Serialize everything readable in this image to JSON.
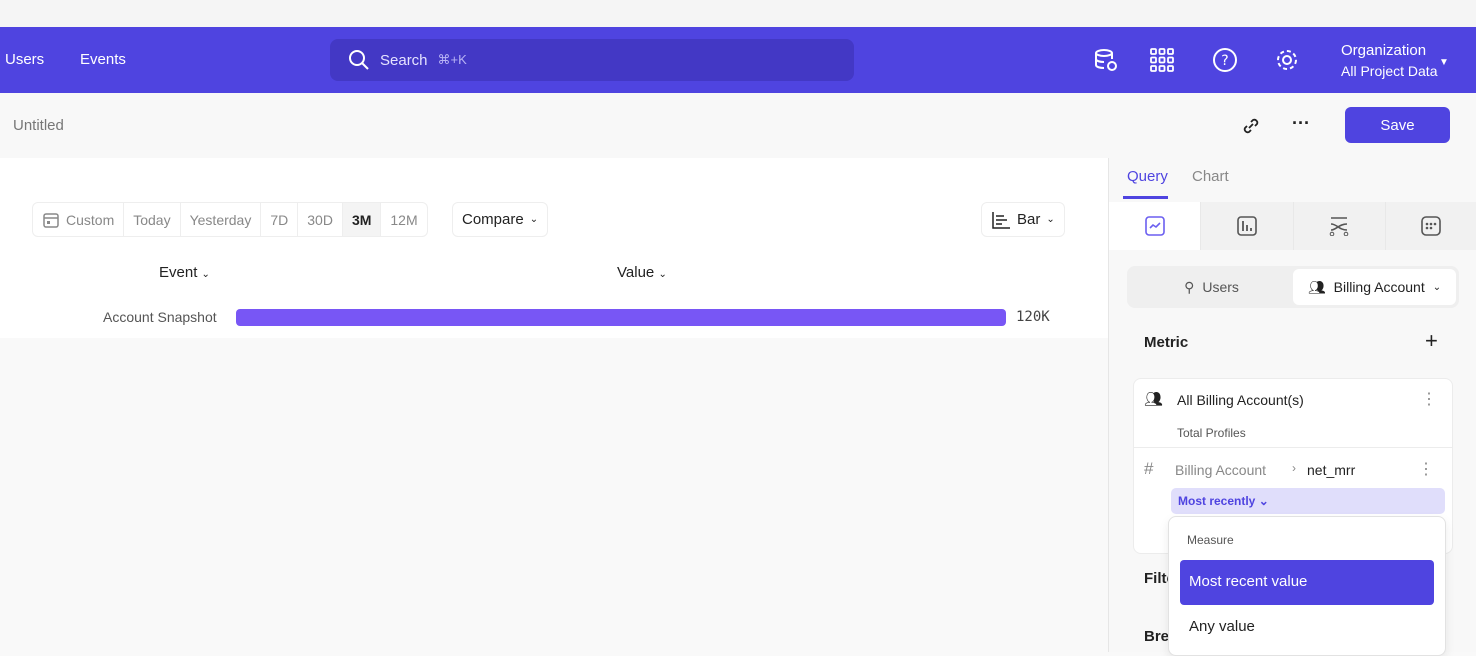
{
  "nav": {
    "links": [
      "Users",
      "Events"
    ],
    "search_placeholder": "Search",
    "search_shortcut": "⌘+K",
    "icons": [
      "database-settings-icon",
      "apps-grid-icon",
      "help-icon",
      "settings-icon"
    ],
    "org_title": "Organization",
    "org_subtitle": "All Project Data"
  },
  "report": {
    "title": "Untitled",
    "save_label": "Save"
  },
  "date_range": {
    "options": [
      "Custom",
      "Today",
      "Yesterday",
      "7D",
      "30D",
      "3M",
      "12M"
    ],
    "selected": "3M",
    "compare_label": "Compare",
    "chart_type_label": "Bar"
  },
  "table": {
    "col_event": "Event",
    "col_value": "Value",
    "rows": [
      {
        "event": "Account Snapshot",
        "value_label": "120K",
        "fraction": 1.0
      }
    ]
  },
  "colors": {
    "brand": "#4f44e0",
    "bar": "#7856f5"
  },
  "panel": {
    "tabs": [
      "Query",
      "Chart"
    ],
    "active_tab": "Query",
    "entities": [
      "Users",
      "Billing Account"
    ],
    "metric_label": "Metric",
    "metric": {
      "name": "All Billing Account(s)",
      "sub": "Total Profiles",
      "property_source": "Billing Account",
      "property": "net_mrr",
      "aggregation": "Most recently"
    },
    "filter_label": "Filte",
    "breakdown_label": "Bre",
    "dropdown": {
      "header": "Measure",
      "options": [
        "Most recent value",
        "Any value"
      ],
      "selected": "Most recent value"
    }
  }
}
